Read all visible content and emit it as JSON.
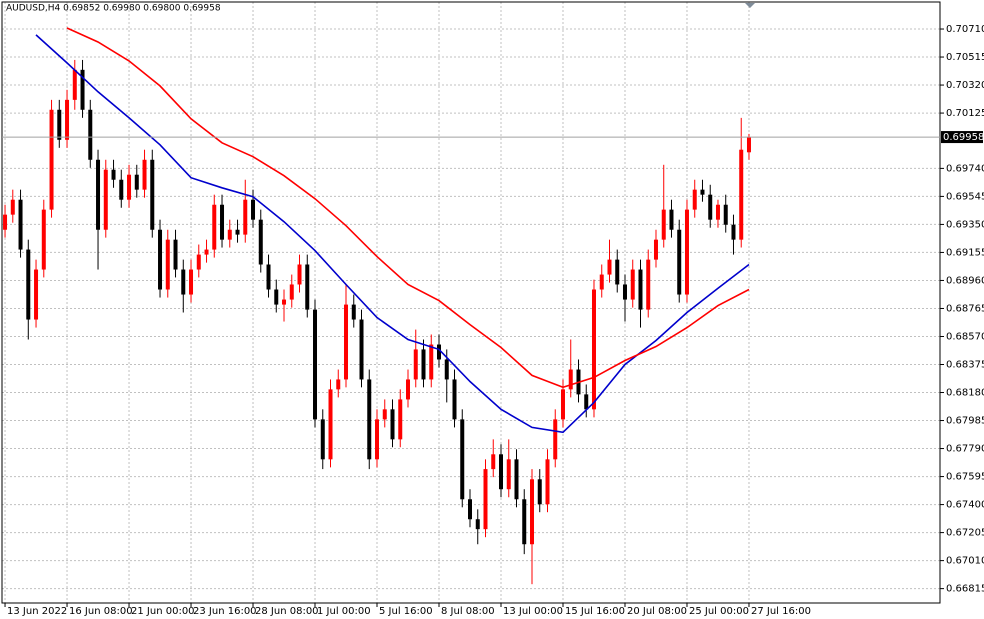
{
  "chart_data": {
    "type": "candlestick",
    "title": "AUDUSD,H4  0.69852 0.69980 0.69800 0.69958",
    "current_price": 0.69958,
    "up_color": "#ff0000",
    "down_color": "#000000",
    "grid": true,
    "xlim": [
      -0.65,
      120.65
    ],
    "ylim": [
      0.66715,
      0.70912
    ],
    "xticks": [
      {
        "value": 0,
        "label": "13 Jun 2022"
      },
      {
        "value": 8,
        "label": "16 Jun 08:00"
      },
      {
        "value": 16,
        "label": "21 Jun 00:00"
      },
      {
        "value": 24,
        "label": "23 Jun 16:00"
      },
      {
        "value": 32,
        "label": "28 Jun 08:00"
      },
      {
        "value": 40,
        "label": "1 Jul 00:00"
      },
      {
        "value": 48,
        "label": "5 Jul 16:00"
      },
      {
        "value": 56,
        "label": "8 Jul 08:00"
      },
      {
        "value": 64,
        "label": "13 Jul 00:00"
      },
      {
        "value": 72,
        "label": "15 Jul 16:00"
      },
      {
        "value": 80,
        "label": "20 Jul 08:00"
      },
      {
        "value": 88,
        "label": "25 Jul 00:00"
      },
      {
        "value": 96,
        "label": "27 Jul 16:00"
      }
    ],
    "yticks": [
      {
        "value": 0.7071,
        "label": "0.70710"
      },
      0.70515,
      {
        "value": 0.7032,
        "label": "0.70320"
      },
      0.70125,
      {
        "value": 0.6974,
        "label": "0.69740"
      },
      0.69545,
      {
        "value": 0.6935,
        "label": "0.69350"
      },
      0.69155,
      {
        "value": 0.6896,
        "label": "0.68960"
      },
      0.68765,
      {
        "value": 0.6857,
        "label": "0.68570"
      },
      0.68375,
      {
        "value": 0.6818,
        "label": "0.68180"
      },
      0.67985,
      {
        "value": 0.6779,
        "label": "0.67790"
      },
      0.67595,
      {
        "value": 0.674,
        "label": "0.67400"
      },
      0.67205,
      {
        "value": 0.6701,
        "label": "0.67010"
      },
      0.66815
    ],
    "open": [
      0.69313,
      0.69418,
      0.69522,
      0.69175,
      0.68688,
      0.69036,
      0.69453,
      0.70148,
      0.69939,
      0.70217,
      0.70426,
      0.70148,
      0.698,
      0.69313,
      0.69731,
      0.69661,
      0.69522,
      0.69696,
      0.69592,
      0.698,
      0.69313,
      0.68897,
      0.69244,
      0.69036,
      0.68862,
      0.69036,
      0.6914,
      0.69175,
      0.69487,
      0.69244,
      0.69313,
      0.69279,
      0.69522,
      0.69383,
      0.69071,
      0.68897,
      0.68792,
      0.68827,
      0.68932,
      0.69071,
      0.68757,
      0.67993,
      0.67715,
      0.68202,
      0.68271,
      0.68792,
      0.68688,
      0.68271,
      0.67715,
      0.67993,
      0.68063,
      0.67854,
      0.68132,
      0.68271,
      0.6848,
      0.68271,
      0.68514,
      0.6841,
      0.68271,
      0.67993,
      0.67437,
      0.67298,
      0.67229,
      0.67647,
      0.6775,
      0.67507,
      0.67715,
      0.67437,
      0.67124,
      0.67576,
      0.67402,
      0.67715,
      0.67993,
      0.68202,
      0.6834,
      0.68167,
      0.68063,
      0.68897,
      0.69001,
      0.69105,
      0.68932,
      0.68827,
      0.69036,
      0.68757,
      0.69105,
      0.69244,
      0.69453,
      0.69313,
      0.68862,
      0.69453,
      0.69592,
      0.69557,
      0.69383,
      0.69487,
      0.69348,
      0.69244,
      0.69852
    ],
    "high": [
      0.69487,
      0.69592,
      0.69592,
      0.69244,
      0.69105,
      0.69522,
      0.70217,
      0.70217,
      0.70287,
      0.70495,
      0.70495,
      0.70217,
      0.6987,
      0.698,
      0.698,
      0.69731,
      0.69765,
      0.69765,
      0.6987,
      0.6987,
      0.69383,
      0.69313,
      0.69313,
      0.69105,
      0.69105,
      0.6921,
      0.69244,
      0.69557,
      0.69557,
      0.69383,
      0.69383,
      0.69661,
      0.69592,
      0.69453,
      0.6914,
      0.68966,
      0.68897,
      0.69001,
      0.6914,
      0.6914,
      0.68827,
      0.68063,
      0.68271,
      0.6834,
      0.68932,
      0.68862,
      0.68757,
      0.6834,
      0.68063,
      0.68132,
      0.68132,
      0.68202,
      0.6834,
      0.68618,
      0.68549,
      0.68584,
      0.68584,
      0.6848,
      0.6834,
      0.68063,
      0.67507,
      0.67367,
      0.67715,
      0.67854,
      0.6782,
      0.67854,
      0.67785,
      0.67507,
      0.67647,
      0.67647,
      0.67785,
      0.68063,
      0.68271,
      0.68549,
      0.6841,
      0.68236,
      0.68966,
      0.69071,
      0.69244,
      0.69175,
      0.69001,
      0.69105,
      0.69105,
      0.69175,
      0.69313,
      0.69765,
      0.69522,
      0.69383,
      0.69522,
      0.69661,
      0.69661,
      0.69626,
      0.69522,
      0.69557,
      0.69418,
      0.70092,
      0.6998
    ],
    "low": [
      0.69258,
      0.69362,
      0.69119,
      0.68549,
      0.68632,
      0.68981,
      0.69397,
      0.69883,
      0.69883,
      0.70148,
      0.70092,
      0.69744,
      0.69036,
      0.69258,
      0.69605,
      0.69466,
      0.69466,
      0.69536,
      0.69536,
      0.69258,
      0.68841,
      0.68841,
      0.68981,
      0.68737,
      0.68806,
      0.68981,
      0.69084,
      0.69119,
      0.69189,
      0.69189,
      0.69223,
      0.69223,
      0.69327,
      0.69015,
      0.68841,
      0.68737,
      0.68674,
      0.68771,
      0.68876,
      0.68702,
      0.67937,
      0.67647,
      0.67659,
      0.68146,
      0.68216,
      0.68632,
      0.68216,
      0.67647,
      0.67659,
      0.67937,
      0.67799,
      0.67799,
      0.68076,
      0.68216,
      0.68216,
      0.68216,
      0.68354,
      0.68111,
      0.67937,
      0.67381,
      0.67242,
      0.67124,
      0.67173,
      0.67591,
      0.67451,
      0.67451,
      0.67381,
      0.67055,
      0.66846,
      0.67347,
      0.67347,
      0.67659,
      0.67937,
      0.68146,
      0.68111,
      0.68007,
      0.68007,
      0.68841,
      0.68945,
      0.68876,
      0.68674,
      0.68771,
      0.68632,
      0.68702,
      0.6905,
      0.69189,
      0.69258,
      0.68806,
      0.68806,
      0.69397,
      0.69508,
      0.69327,
      0.69327,
      0.69293,
      0.6914,
      0.69189,
      0.698
    ],
    "close": [
      0.69418,
      0.69522,
      0.69175,
      0.68688,
      0.69036,
      0.69453,
      0.70148,
      0.69939,
      0.70217,
      0.70426,
      0.70148,
      0.698,
      0.69313,
      0.69731,
      0.69661,
      0.69522,
      0.69696,
      0.69592,
      0.698,
      0.69313,
      0.68897,
      0.69244,
      0.69036,
      0.68862,
      0.69036,
      0.6914,
      0.69175,
      0.69487,
      0.69244,
      0.69313,
      0.69279,
      0.69522,
      0.69383,
      0.69071,
      0.68897,
      0.68792,
      0.68827,
      0.68932,
      0.69071,
      0.68757,
      0.67993,
      0.67715,
      0.68202,
      0.68271,
      0.68792,
      0.68688,
      0.68271,
      0.67715,
      0.67993,
      0.68063,
      0.67854,
      0.68132,
      0.68271,
      0.6848,
      0.68271,
      0.68514,
      0.6841,
      0.68271,
      0.67993,
      0.67437,
      0.67298,
      0.67229,
      0.67647,
      0.6775,
      0.67507,
      0.67715,
      0.67437,
      0.67124,
      0.67576,
      0.67402,
      0.67715,
      0.67993,
      0.68202,
      0.6834,
      0.68167,
      0.68063,
      0.68897,
      0.69001,
      0.69105,
      0.68932,
      0.68827,
      0.69036,
      0.68757,
      0.69105,
      0.69244,
      0.69453,
      0.69313,
      0.68862,
      0.69453,
      0.69592,
      0.69557,
      0.69383,
      0.69487,
      0.69348,
      0.69244,
      0.6987,
      0.69958
    ],
    "series": [
      {
        "color": "#0000cc",
        "x": [
          0,
          4,
          8,
          12,
          16,
          20,
          24,
          28,
          32,
          36,
          40,
          44,
          48,
          52,
          56,
          60,
          64,
          68,
          72,
          76,
          80,
          84,
          88,
          92,
          96
        ],
        "values": [
          null,
          0.70669,
          0.70474,
          0.70273,
          0.70092,
          0.69904,
          0.69675,
          0.69605,
          0.69543,
          0.69369,
          0.69168,
          0.68932,
          0.68702,
          0.68549,
          0.6848,
          0.68257,
          0.68063,
          0.67937,
          0.67903,
          0.68111,
          0.68375,
          0.68542,
          0.68737,
          0.68906,
          0.69071
        ]
      },
      {
        "color": "#ff0000",
        "x": [
          0,
          4,
          8,
          12,
          16,
          20,
          24,
          28,
          32,
          36,
          40,
          44,
          48,
          52,
          56,
          60,
          64,
          68,
          72,
          76,
          80,
          84,
          88,
          92,
          96
        ],
        "values": [
          null,
          null,
          0.70717,
          0.7062,
          0.70488,
          0.70314,
          0.70085,
          0.69918,
          0.69821,
          0.69689,
          0.69529,
          0.69341,
          0.69126,
          0.68932,
          0.6882,
          0.68653,
          0.68493,
          0.68299,
          0.68216,
          0.68285,
          0.68403,
          0.685,
          0.68632,
          0.68785,
          0.68897
        ]
      }
    ]
  }
}
